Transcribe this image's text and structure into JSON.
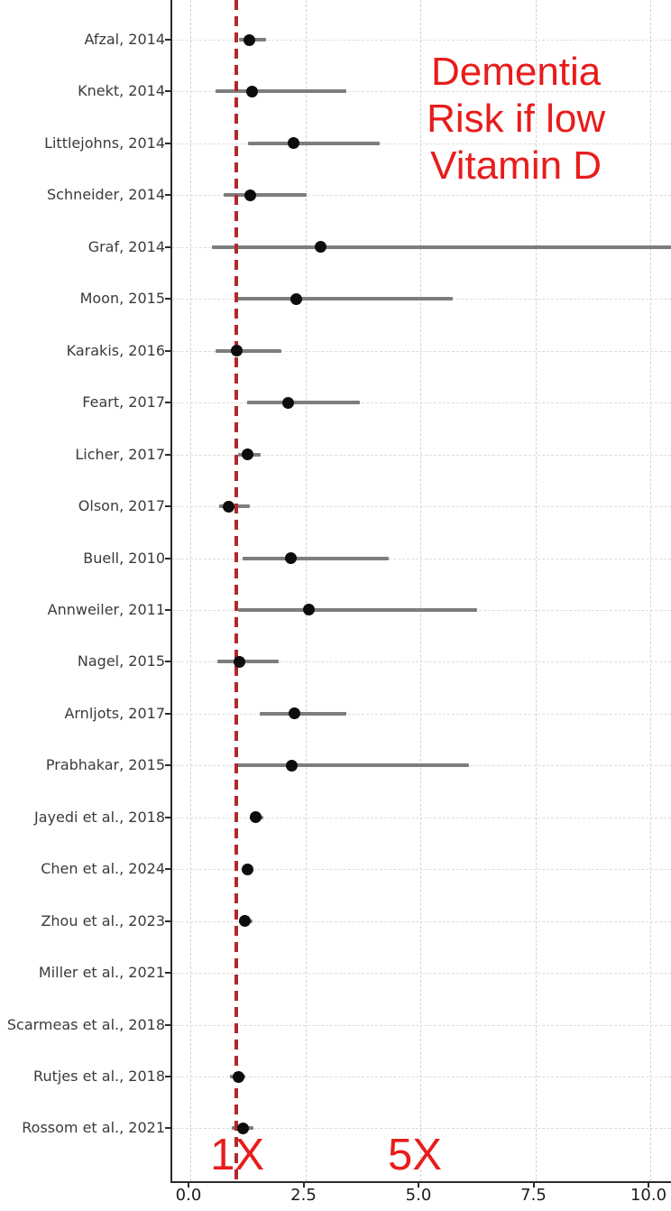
{
  "chart_data": {
    "type": "scatter",
    "subtype": "forest-plot",
    "title": "Dementia Risk if low Vitamin D",
    "annotation": {
      "lines": [
        "Dementia",
        "Risk if low",
        "Vitamin D"
      ],
      "color": "#e81c1c",
      "center_x_value": 7.12
    },
    "reference_line": {
      "value": 1.0,
      "color": "#b02a2a",
      "style": "dashed"
    },
    "axis_marks": [
      {
        "text": "1X",
        "x_value": 1.06,
        "color": "#e81c1c"
      },
      {
        "text": "5X",
        "x_value": 4.92,
        "color": "#e81c1c"
      }
    ],
    "x_axis": {
      "ticks": [
        0.0,
        2.5,
        5.0,
        7.5,
        10.0
      ],
      "tick_labels": [
        "0.0",
        "2.5",
        "5.0",
        "7.5",
        "10.0"
      ],
      "grid": "dashed"
    },
    "studies": [
      {
        "label": "Afzal, 2014",
        "estimate": 1.28,
        "ci_low": 1.06,
        "ci_high": 1.65
      },
      {
        "label": "Knekt, 2014",
        "estimate": 1.35,
        "ci_low": 0.55,
        "ci_high": 3.4
      },
      {
        "label": "Littlejohns, 2014",
        "estimate": 2.25,
        "ci_low": 1.25,
        "ci_high": 4.12
      },
      {
        "label": "Schneider, 2014",
        "estimate": 1.31,
        "ci_low": 0.73,
        "ci_high": 2.53
      },
      {
        "label": "Graf, 2014",
        "estimate": 2.84,
        "ci_low": 0.47,
        "ci_high": 10.6
      },
      {
        "label": "Moon, 2015",
        "estimate": 2.3,
        "ci_low": 1.0,
        "ci_high": 5.71
      },
      {
        "label": "Karakis, 2016",
        "estimate": 1.0,
        "ci_low": 0.55,
        "ci_high": 1.98
      },
      {
        "label": "Feart, 2017",
        "estimate": 2.12,
        "ci_low": 1.24,
        "ci_high": 3.69
      },
      {
        "label": "Licher, 2017",
        "estimate": 1.24,
        "ci_low": 1.04,
        "ci_high": 1.53
      },
      {
        "label": "Olson, 2017",
        "estimate": 0.84,
        "ci_low": 0.63,
        "ci_high": 1.29
      },
      {
        "label": "Buell, 2010",
        "estimate": 2.18,
        "ci_low": 1.14,
        "ci_high": 4.31
      },
      {
        "label": "Annweiler, 2011",
        "estimate": 2.57,
        "ci_low": 1.04,
        "ci_high": 6.24
      },
      {
        "label": "Nagel, 2015",
        "estimate": 1.06,
        "ci_low": 0.59,
        "ci_high": 1.92
      },
      {
        "label": "Arnljots, 2017",
        "estimate": 2.27,
        "ci_low": 1.51,
        "ci_high": 3.39
      },
      {
        "label": "Prabhakar, 2015",
        "estimate": 2.2,
        "ci_low": 1.02,
        "ci_high": 6.06
      },
      {
        "label": "Jayedi et al., 2018",
        "estimate": 1.43,
        "ci_low": 1.29,
        "ci_high": 1.59
      },
      {
        "label": "Chen et al., 2024",
        "estimate": 1.25,
        "ci_low": 1.14,
        "ci_high": 1.36
      },
      {
        "label": "Zhou et al., 2023",
        "estimate": 1.18,
        "ci_low": 1.05,
        "ci_high": 1.35
      },
      {
        "label": "Miller et al., 2021",
        "estimate": null,
        "ci_low": null,
        "ci_high": null
      },
      {
        "label": "Scarmeas et al., 2018",
        "estimate": null,
        "ci_low": null,
        "ci_high": null
      },
      {
        "label": "Rutjes et al., 2018",
        "estimate": 1.04,
        "ci_low": 0.87,
        "ci_high": 1.2
      },
      {
        "label": "Rossom et al., 2021",
        "estimate": 1.14,
        "ci_low": 0.9,
        "ci_high": 1.38
      }
    ],
    "style_colors": {
      "point": "#0d0d0d",
      "ci": "#7d7d7d",
      "grid": "#d2d2d2",
      "spine": "#2b2b2b",
      "label_text": "#3a3a3a"
    }
  }
}
